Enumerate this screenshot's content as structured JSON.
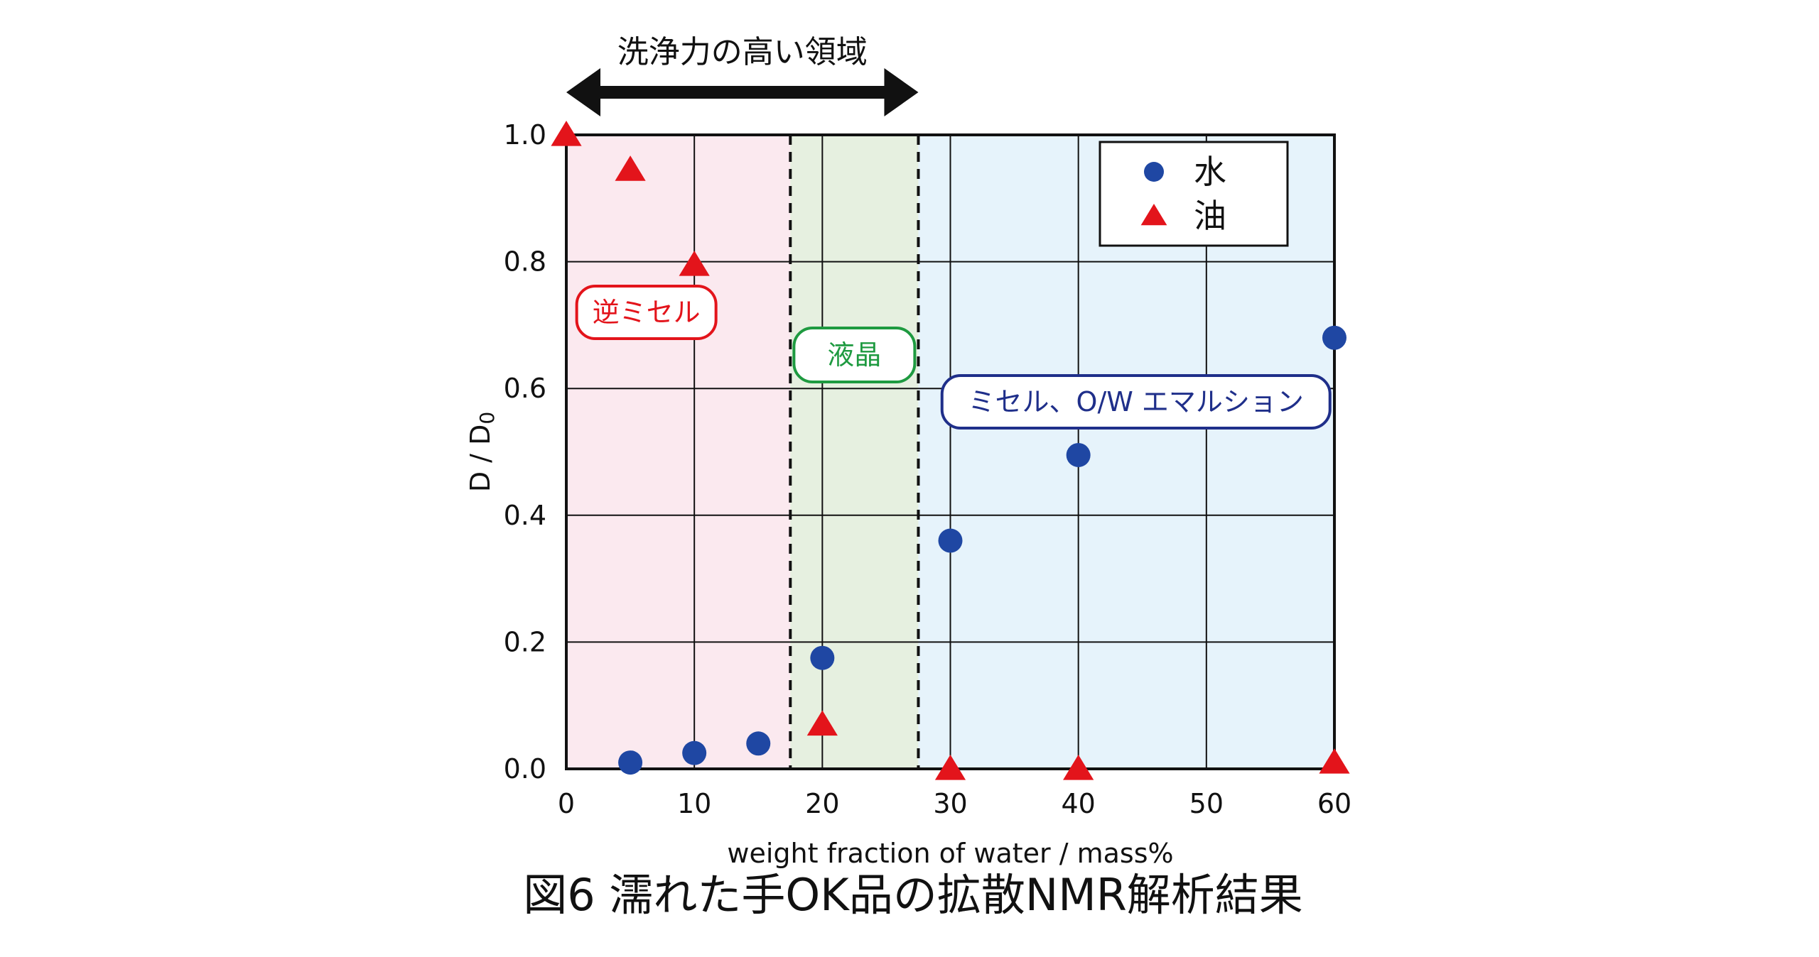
{
  "colors": {
    "water": "#1f47a3",
    "oil": "#e3141b",
    "region_reverse": "#fbe9ef",
    "region_liquid": "#e6f0e0",
    "region_micelle": "#e6f3fb",
    "label_reverse": "#e3141b",
    "label_liquid": "#1e9a40",
    "label_micelle": "#1f2f8a"
  },
  "chart_data": {
    "type": "scatter",
    "xlabel": "weight fraction of water / mass%",
    "ylabel": "D / D",
    "ylabel_subscript": "0",
    "xlim": [
      0,
      60
    ],
    "ylim": [
      0,
      1.0
    ],
    "x_ticks": [
      0,
      10,
      20,
      30,
      40,
      50,
      60
    ],
    "x_tick_labels": [
      "0",
      "10",
      "20",
      "30",
      "40",
      "50",
      "60"
    ],
    "y_ticks": [
      0,
      0.2,
      0.4,
      0.6,
      0.8,
      1.0
    ],
    "y_tick_labels": [
      "0.0",
      "0.2",
      "0.4",
      "0.6",
      "0.8",
      "1.0"
    ],
    "grid": true,
    "legend_position": "top-right",
    "series": [
      {
        "name": "水",
        "marker": "circle",
        "color": "#1f47a3",
        "x": [
          5,
          10,
          15,
          20,
          30,
          40,
          60
        ],
        "y": [
          0.01,
          0.025,
          0.04,
          0.175,
          0.36,
          0.495,
          0.68
        ]
      },
      {
        "name": "油",
        "marker": "triangle",
        "color": "#e3141b",
        "x": [
          0,
          5,
          10,
          20,
          30,
          40,
          60
        ],
        "y": [
          1.0,
          0.945,
          0.795,
          0.07,
          0.0,
          0.0,
          0.01
        ]
      }
    ],
    "regions": [
      {
        "label": "逆ミセル",
        "from": 0,
        "to": 17.5
      },
      {
        "label": "液晶",
        "from": 17.5,
        "to": 27.5
      },
      {
        "label": "ミセル、O/W エマルション",
        "from": 27.5,
        "to": 60
      }
    ],
    "dashed_lines_x": [
      17.5,
      27.5
    ],
    "range_arrow": {
      "label": "洗浄力の高い領域",
      "from": 0,
      "to": 27.5
    }
  },
  "caption": "図6  濡れた手OK品の拡散NMR解析結果"
}
